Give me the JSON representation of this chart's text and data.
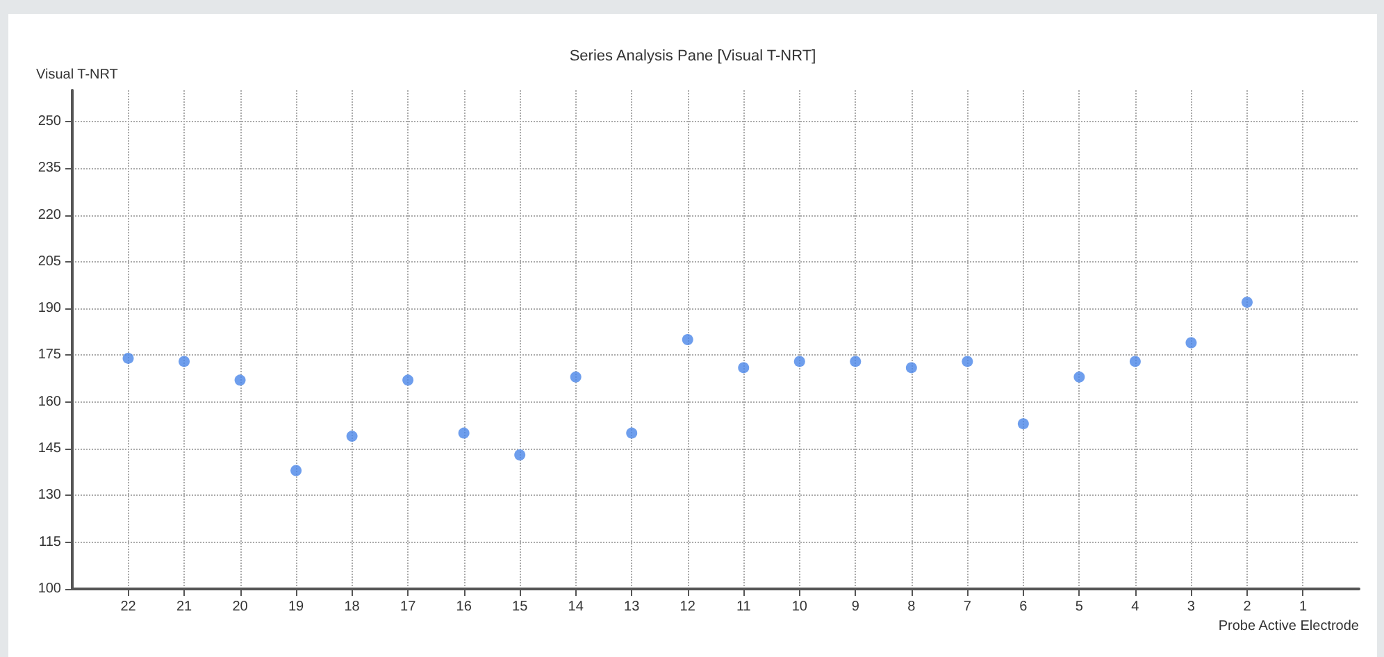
{
  "chart_data": {
    "type": "scatter",
    "title": "Series Analysis Pane [Visual T-NRT]",
    "xlabel": "Probe Active Electrode",
    "ylabel": "Visual T-NRT",
    "x": [
      22,
      21,
      20,
      19,
      18,
      17,
      16,
      15,
      14,
      13,
      12,
      11,
      10,
      9,
      8,
      7,
      6,
      5,
      4,
      3,
      2
    ],
    "values": [
      174,
      173,
      167,
      138,
      149,
      167,
      150,
      143,
      168,
      150,
      180,
      171,
      173,
      173,
      171,
      173,
      153,
      168,
      173,
      179,
      192
    ],
    "color": "#4a86e8",
    "marker": "circle",
    "grid": true,
    "xlim": [
      23,
      0
    ],
    "xticks": [
      22,
      21,
      20,
      19,
      18,
      17,
      16,
      15,
      14,
      13,
      12,
      11,
      10,
      9,
      8,
      7,
      6,
      5,
      4,
      3,
      2,
      1
    ],
    "ylim": [
      100,
      260
    ],
    "yticks": [
      100,
      115,
      130,
      145,
      160,
      175,
      190,
      205,
      220,
      235,
      250
    ]
  }
}
